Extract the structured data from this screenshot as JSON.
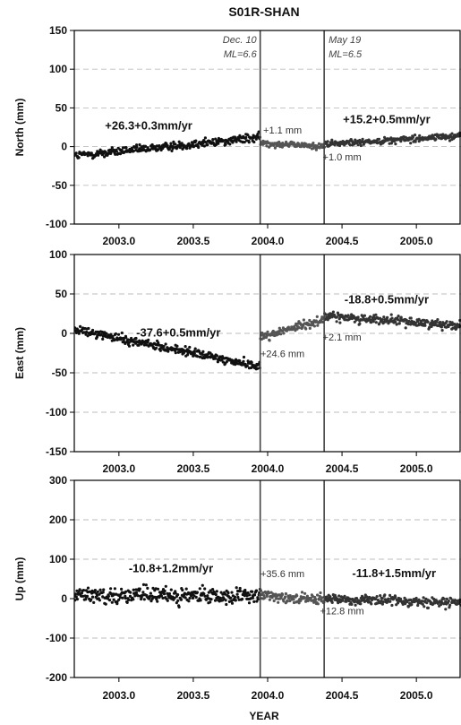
{
  "chart_data": {
    "type": "scatter",
    "title": "S01R-SHAN",
    "xlabel": "YEAR",
    "xlim": [
      2002.7,
      2005.3
    ],
    "xticks": [
      "2003.0",
      "2003.5",
      "2004.0",
      "2004.5",
      "2005.0"
    ],
    "xtick_values": [
      2003.0,
      2003.5,
      2004.0,
      2004.5,
      2005.0
    ],
    "grid": true,
    "events": [
      {
        "x": 2003.95,
        "label": "Dec. 10",
        "magnitude": "ML=6.6"
      },
      {
        "x": 2004.38,
        "label": "May 19",
        "magnitude": "ML=6.5"
      }
    ],
    "panels": [
      {
        "ylabel": "North (mm)",
        "ylim": [
          -100,
          150
        ],
        "yticks": [
          150,
          100,
          50,
          0,
          -50,
          -100
        ],
        "ytick_labels": [
          "150",
          "100",
          "50",
          "0",
          "-50",
          "-100"
        ],
        "segments": [
          {
            "x_start": 2002.7,
            "x_end": 2003.95,
            "y_start": -12,
            "y_end": 12,
            "scatter": 4,
            "color": "#111111"
          },
          {
            "x_start": 2003.95,
            "x_end": 2004.38,
            "y_start": 5,
            "y_end": 0,
            "scatter": 3,
            "color": "#555555"
          },
          {
            "x_start": 2004.38,
            "x_end": 2005.3,
            "y_start": 3,
            "y_end": 14,
            "scatter": 3,
            "color": "#333333"
          }
        ],
        "annotations": [
          {
            "text": "+26.3+0.3mm/yr",
            "x": 2003.2,
            "y": 22,
            "kind": "rate"
          },
          {
            "text": "+1.1 mm",
            "x": 2004.1,
            "y": 17,
            "kind": "offset"
          },
          {
            "text": "+15.2+0.5mm/yr",
            "x": 2004.8,
            "y": 30,
            "kind": "rate"
          },
          {
            "text": "+1.0 mm",
            "x": 2004.5,
            "y": -18,
            "kind": "offset"
          }
        ],
        "show_events_labels": true
      },
      {
        "ylabel": "East (mm)",
        "ylim": [
          -150,
          100
        ],
        "yticks": [
          100,
          50,
          0,
          -50,
          -100,
          -150
        ],
        "ytick_labels": [
          "100",
          "50",
          "0",
          "-50",
          "-100",
          "-150"
        ],
        "segments": [
          {
            "x_start": 2002.7,
            "x_end": 2003.95,
            "y_start": 5,
            "y_end": -42,
            "scatter": 4,
            "color": "#111111"
          },
          {
            "x_start": 2003.95,
            "x_end": 2004.38,
            "y_start": -5,
            "y_end": 18,
            "scatter": 4,
            "color": "#555555"
          },
          {
            "x_start": 2004.38,
            "x_end": 2005.3,
            "y_start": 22,
            "y_end": 10,
            "scatter": 4,
            "color": "#333333"
          }
        ],
        "annotations": [
          {
            "text": "-37.6+0.5mm/yr",
            "x": 2003.4,
            "y": -4,
            "kind": "rate"
          },
          {
            "text": "+24.6 mm",
            "x": 2004.1,
            "y": -30,
            "kind": "offset"
          },
          {
            "text": "-18.8+0.5mm/yr",
            "x": 2004.8,
            "y": 38,
            "kind": "rate"
          },
          {
            "text": "+2.1 mm",
            "x": 2004.5,
            "y": -9,
            "kind": "offset"
          }
        ],
        "show_events_labels": false
      },
      {
        "ylabel": "Up (mm)",
        "ylim": [
          -200,
          300
        ],
        "yticks": [
          300,
          200,
          100,
          0,
          -100,
          -200
        ],
        "ytick_labels": [
          "300",
          "200",
          "100",
          "0",
          "-100",
          "-200"
        ],
        "segments": [
          {
            "x_start": 2002.7,
            "x_end": 2003.95,
            "y_start": 10,
            "y_end": 5,
            "scatter": 14,
            "color": "#111111"
          },
          {
            "x_start": 2003.95,
            "x_end": 2004.38,
            "y_start": 10,
            "y_end": -5,
            "scatter": 10,
            "color": "#555555"
          },
          {
            "x_start": 2004.38,
            "x_end": 2005.3,
            "y_start": 0,
            "y_end": -10,
            "scatter": 9,
            "color": "#333333"
          }
        ],
        "annotations": [
          {
            "text": "-10.8+1.2mm/yr",
            "x": 2003.35,
            "y": 67,
            "kind": "rate"
          },
          {
            "text": "+35.6 mm",
            "x": 2004.1,
            "y": 55,
            "kind": "offset"
          },
          {
            "text": "-11.8+1.5mm/yr",
            "x": 2004.85,
            "y": 55,
            "kind": "rate"
          },
          {
            "text": "+12.8 mm",
            "x": 2004.5,
            "y": -40,
            "kind": "offset"
          }
        ],
        "show_events_labels": false
      }
    ]
  }
}
